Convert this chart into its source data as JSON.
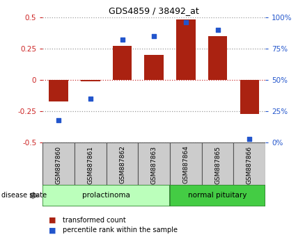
{
  "title": "GDS4859 / 38492_at",
  "samples": [
    "GSM887860",
    "GSM887861",
    "GSM887862",
    "GSM887863",
    "GSM887864",
    "GSM887865",
    "GSM887866"
  ],
  "bar_values": [
    -0.17,
    -0.01,
    0.27,
    0.2,
    0.48,
    0.35,
    -0.27
  ],
  "percentile_values": [
    18,
    35,
    82,
    85,
    96,
    90,
    3
  ],
  "bar_color": "#aa2211",
  "dot_color": "#2255cc",
  "ylim_left": [
    -0.5,
    0.5
  ],
  "ylim_right": [
    0,
    100
  ],
  "yticks_left": [
    -0.5,
    -0.25,
    0,
    0.25,
    0.5
  ],
  "yticks_right": [
    0,
    25,
    50,
    75,
    100
  ],
  "ytick_labels_left": [
    "-0.5",
    "-0.25",
    "0",
    "0.25",
    "0.5"
  ],
  "ytick_labels_right": [
    "0%",
    "25%",
    "50%",
    "75%",
    "100%"
  ],
  "groups": [
    {
      "label": "prolactinoma",
      "indices": [
        0,
        1,
        2,
        3
      ],
      "color": "#bbffbb",
      "border": "#338833"
    },
    {
      "label": "normal pituitary",
      "indices": [
        4,
        5,
        6
      ],
      "color": "#44cc44",
      "border": "#338833"
    }
  ],
  "disease_state_label": "disease state",
  "legend_bar_label": "transformed count",
  "legend_dot_label": "percentile rank within the sample",
  "background_color": "#ffffff",
  "plot_bg_color": "#ffffff",
  "grid_color": "#999999",
  "sample_box_color": "#cccccc",
  "sample_box_border": "#555555"
}
